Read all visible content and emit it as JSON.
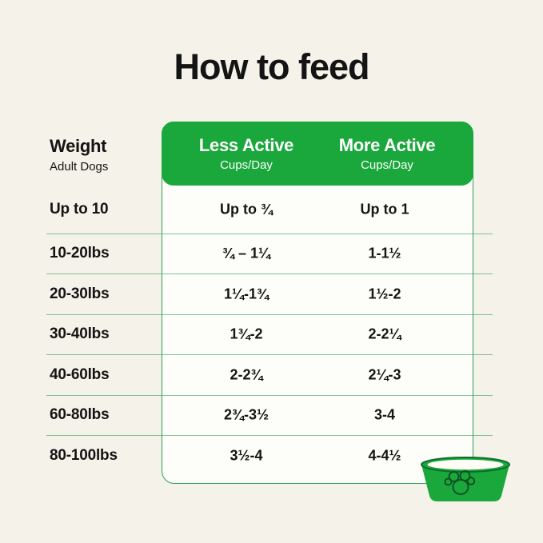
{
  "page": {
    "title": "How to feed"
  },
  "colors": {
    "background": "#f5f2e9",
    "green": "#1aa73c",
    "green-dark": "#0c6f2b",
    "paw-outline": "#0e4c20",
    "line-green": "#2f9e57",
    "table-bg": "#fdfdfa",
    "text": "#141414"
  },
  "weight_header": {
    "title": "Weight",
    "subtitle": "Adult Dogs"
  },
  "column_headers": [
    {
      "label": "Less Active",
      "sublabel": "Cups/Day"
    },
    {
      "label": "More Active",
      "sublabel": "Cups/Day"
    }
  ],
  "icons": {
    "bowl": "dog-bowl-with-paw-print"
  },
  "chart_data": {
    "type": "table",
    "title": "How to feed",
    "columns": [
      "Weight (Adult Dogs)",
      "Less Active (Cups/Day)",
      "More Active (Cups/Day)"
    ],
    "rows": [
      [
        "Up to 10",
        "Up to ¾",
        "Up to 1"
      ],
      [
        "10-20lbs",
        "¾ – 1¼",
        "1-1½"
      ],
      [
        "20-30lbs",
        "1¼-1¾",
        "1½-2"
      ],
      [
        "30-40lbs",
        "1¾-2",
        "2-2¼"
      ],
      [
        "40-60lbs",
        "2-2¾",
        "2¼-3"
      ],
      [
        "60-80lbs",
        "2¾-3½",
        "3-4"
      ],
      [
        "80-100lbs",
        "3½-4",
        "4-4½"
      ]
    ]
  }
}
